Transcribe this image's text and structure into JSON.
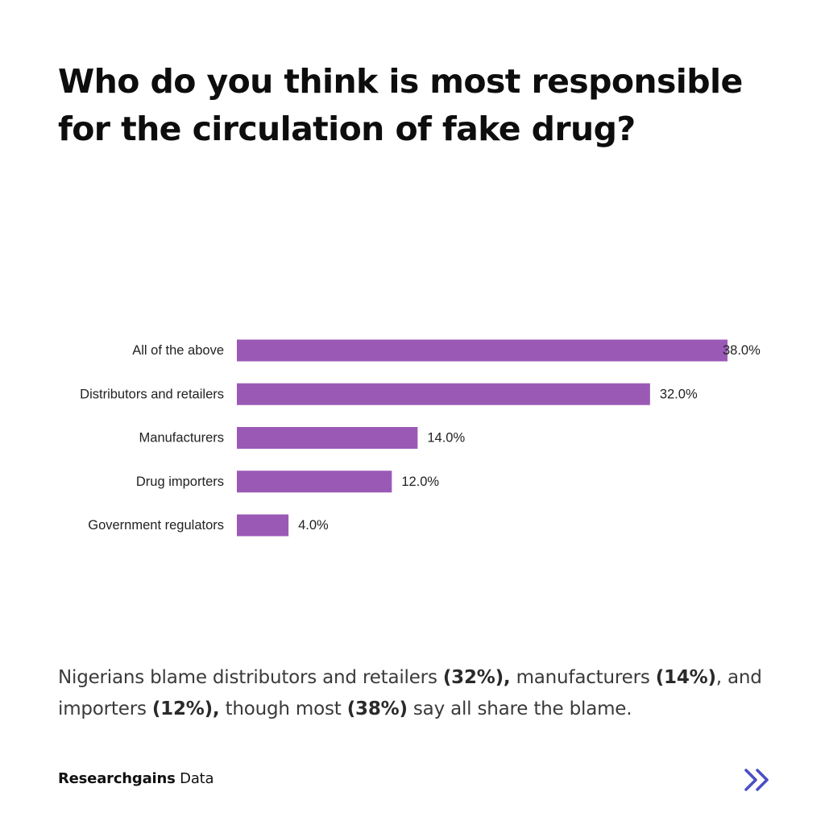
{
  "title": "Who do you think is most responsible for the circulation of fake drug?",
  "chart_data": {
    "type": "bar",
    "orientation": "horizontal",
    "categories": [
      "All of the above",
      "Distributors and retailers",
      "Manufacturers",
      "Drug importers",
      "Government regulators"
    ],
    "values": [
      38.0,
      32.0,
      14.0,
      12.0,
      4.0
    ],
    "value_labels": [
      "38.0%",
      "32.0%",
      "14.0%",
      "12.0%",
      "4.0%"
    ],
    "unit": "%",
    "title": "",
    "xlabel": "",
    "ylabel": "",
    "xlim": [
      0,
      38
    ],
    "grid": false,
    "legend": "none",
    "bar_color": "#9b59b6"
  },
  "caption": {
    "parts": [
      {
        "text": "Nigerians blame distributors and retailers ",
        "bold": false
      },
      {
        "text": "(32%),",
        "bold": true
      },
      {
        "text": " manufacturers ",
        "bold": false
      },
      {
        "text": "(14%)",
        "bold": true
      },
      {
        "text": ", and importers ",
        "bold": false
      },
      {
        "text": "(12%),",
        "bold": true
      },
      {
        "text": " though most ",
        "bold": false
      },
      {
        "text": "(38%)",
        "bold": true
      },
      {
        "text": " say all share the blame.",
        "bold": false
      }
    ]
  },
  "footer": {
    "brand": "Researchgains",
    "suffix": " Data"
  },
  "colors": {
    "accent": "#9b59b6",
    "next_icon": "#4b4fc4"
  },
  "next_icon": "double-chevron-right-icon"
}
